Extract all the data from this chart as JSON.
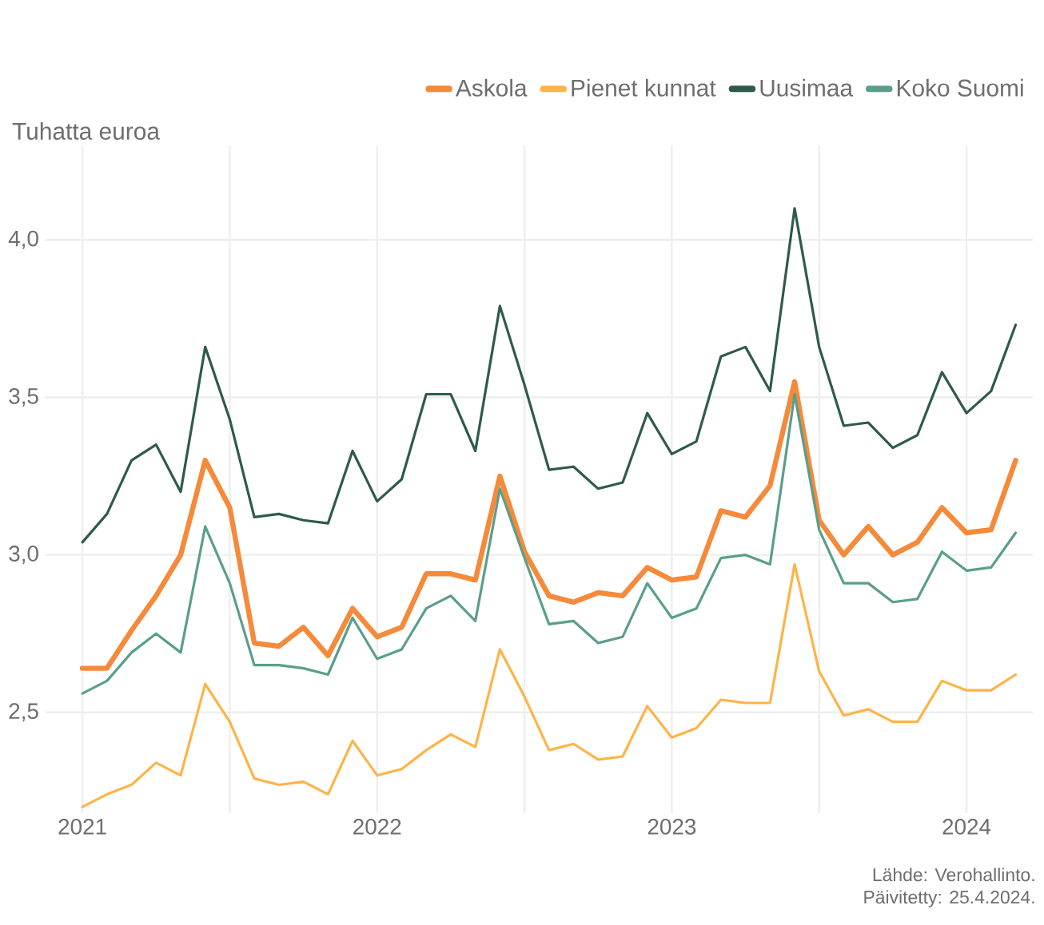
{
  "chart_data": {
    "type": "line",
    "ylabel": "Tuhatta euroa",
    "x": [
      "2021-01",
      "2021-02",
      "2021-03",
      "2021-04",
      "2021-05",
      "2021-06",
      "2021-07",
      "2021-08",
      "2021-09",
      "2021-10",
      "2021-11",
      "2021-12",
      "2022-01",
      "2022-02",
      "2022-03",
      "2022-04",
      "2022-05",
      "2022-06",
      "2022-07",
      "2022-08",
      "2022-09",
      "2022-10",
      "2022-11",
      "2022-12",
      "2023-01",
      "2023-02",
      "2023-03",
      "2023-04",
      "2023-05",
      "2023-06",
      "2023-07",
      "2023-08",
      "2023-09",
      "2023-10",
      "2023-11",
      "2023-12",
      "2024-01",
      "2024-02",
      "2024-03"
    ],
    "series": [
      {
        "name": "Askola",
        "color": "#f58a3a",
        "values": [
          2.64,
          2.64,
          2.76,
          2.87,
          3.0,
          3.3,
          3.15,
          2.72,
          2.71,
          2.77,
          2.68,
          2.83,
          2.74,
          2.77,
          2.94,
          2.94,
          2.92,
          3.25,
          3.01,
          2.87,
          2.85,
          2.88,
          2.87,
          2.96,
          2.92,
          2.93,
          3.14,
          3.12,
          3.22,
          3.55,
          3.11,
          3.0,
          3.09,
          3.0,
          3.04,
          3.15,
          3.07,
          3.08,
          3.3
        ]
      },
      {
        "name": "Pienet kunnat",
        "color": "#ffb347",
        "values": [
          2.2,
          2.24,
          2.27,
          2.34,
          2.3,
          2.59,
          2.47,
          2.29,
          2.27,
          2.28,
          2.24,
          2.41,
          2.3,
          2.32,
          2.38,
          2.43,
          2.39,
          2.7,
          2.55,
          2.38,
          2.4,
          2.35,
          2.36,
          2.52,
          2.42,
          2.45,
          2.54,
          2.53,
          2.53,
          2.97,
          2.63,
          2.49,
          2.51,
          2.47,
          2.47,
          2.6,
          2.57,
          2.57,
          2.62
        ]
      },
      {
        "name": "Uusimaa",
        "color": "#2e5a4c",
        "values": [
          3.04,
          3.13,
          3.3,
          3.35,
          3.2,
          3.66,
          3.43,
          3.12,
          3.13,
          3.11,
          3.1,
          3.33,
          3.17,
          3.24,
          3.51,
          3.51,
          3.33,
          3.79,
          3.54,
          3.27,
          3.28,
          3.21,
          3.23,
          3.45,
          3.32,
          3.36,
          3.63,
          3.66,
          3.52,
          4.1,
          3.66,
          3.41,
          3.42,
          3.34,
          3.38,
          3.58,
          3.45,
          3.52,
          3.73
        ]
      },
      {
        "name": "Koko Suomi",
        "color": "#5a9e8c",
        "values": [
          2.56,
          2.6,
          2.69,
          2.75,
          2.69,
          3.09,
          2.91,
          2.65,
          2.65,
          2.64,
          2.62,
          2.8,
          2.67,
          2.7,
          2.83,
          2.87,
          2.79,
          3.21,
          2.99,
          2.78,
          2.79,
          2.72,
          2.74,
          2.91,
          2.8,
          2.83,
          2.99,
          3.0,
          2.97,
          3.51,
          3.08,
          2.91,
          2.91,
          2.85,
          2.86,
          3.01,
          2.95,
          2.96,
          3.07
        ]
      }
    ],
    "xlim": [
      "2020-11-15",
      "2024-03-22"
    ],
    "xticks": [
      {
        "value": "2021-01",
        "label": "2021"
      },
      {
        "value": "2021-07",
        "label": null
      },
      {
        "value": "2022-01",
        "label": "2022"
      },
      {
        "value": "2022-07",
        "label": null
      },
      {
        "value": "2023-01",
        "label": "2023"
      },
      {
        "value": "2023-07",
        "label": null
      },
      {
        "value": "2024-01",
        "label": "2024"
      }
    ],
    "ylim": [
      2.18,
      4.3
    ],
    "yticks": [
      {
        "value": 2.5,
        "label": "2,5"
      },
      {
        "value": 3.0,
        "label": "3,0"
      },
      {
        "value": 3.5,
        "label": "3,5"
      },
      {
        "value": 4.0,
        "label": "4,0"
      }
    ],
    "grid": true,
    "legend": "top",
    "marker": "none",
    "line_style": "solid",
    "annotations": [
      "Lähde: Verohallinto.",
      "Päivitetty: 25.4.2024."
    ]
  }
}
